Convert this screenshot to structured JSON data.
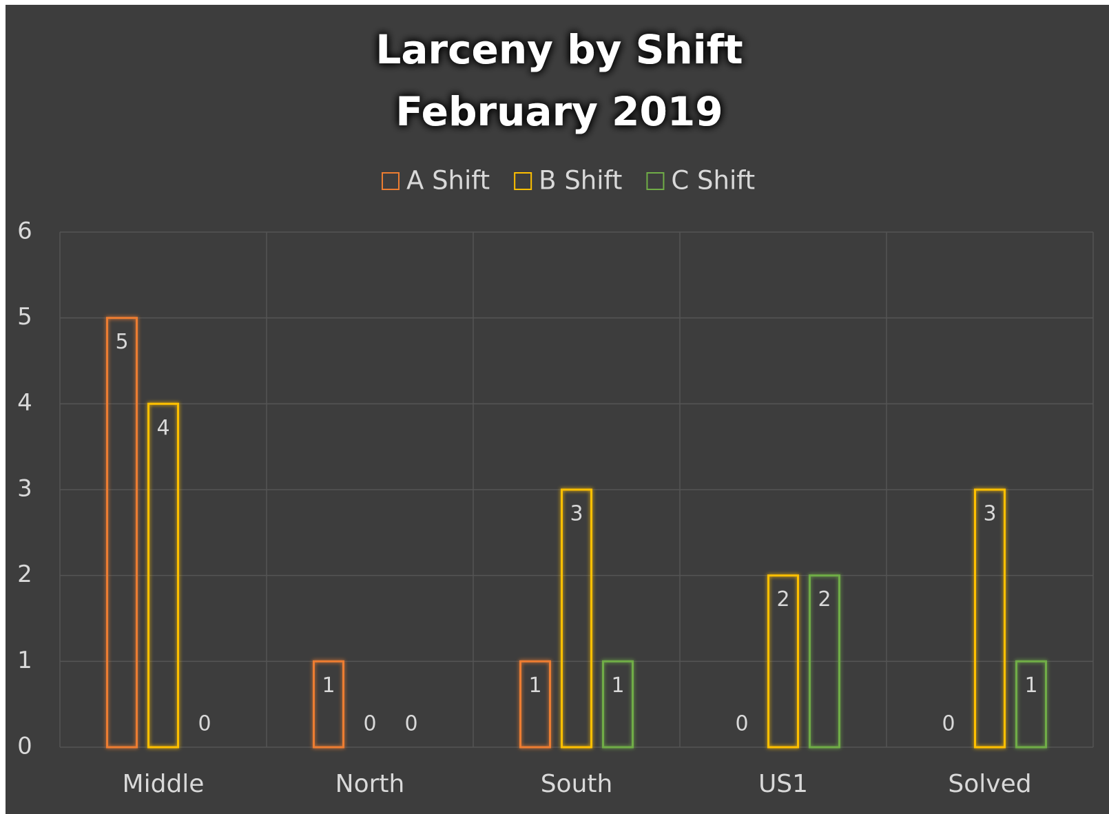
{
  "chart_data": {
    "type": "bar",
    "title": "Larceny by Shift",
    "subtitle": "February 2019",
    "categories": [
      "Middle",
      "North",
      "South",
      "US1",
      "Solved"
    ],
    "series": [
      {
        "name": "A Shift",
        "color": "#ed7d31",
        "values": [
          5,
          1,
          1,
          0,
          0
        ]
      },
      {
        "name": "B Shift",
        "color": "#ffc000",
        "values": [
          4,
          0,
          3,
          2,
          3
        ]
      },
      {
        "name": "C Shift",
        "color": "#70ad47",
        "values": [
          0,
          0,
          1,
          2,
          1
        ]
      }
    ],
    "ylim": [
      0,
      6
    ],
    "yticks": [
      0,
      1,
      2,
      3,
      4,
      5,
      6
    ],
    "grid": true,
    "legend": "top"
  }
}
